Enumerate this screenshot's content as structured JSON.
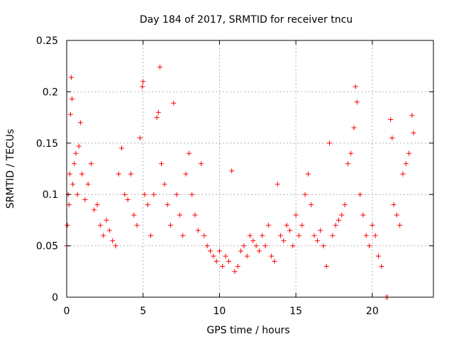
{
  "chart_data": {
    "type": "scatter",
    "title": "Day 184 of 2017, SRMTID for receiver tncu",
    "xlabel": "GPS time / hours",
    "ylabel": "SRMTID / TECUs",
    "xlim": [
      0,
      24
    ],
    "ylim": [
      0,
      0.25
    ],
    "x_ticks": [
      0,
      5,
      10,
      15,
      20
    ],
    "x_tick_labels": [
      "0",
      "5",
      "10",
      "15",
      "20"
    ],
    "y_ticks": [
      0,
      0.05,
      0.1,
      0.15,
      0.2,
      0.25
    ],
    "y_tick_labels": [
      "0",
      "0.05",
      "0.1",
      "0.15",
      "0.2",
      "0.25"
    ],
    "grid": true,
    "marker": "plus",
    "color": "#ff0000",
    "series": [
      {
        "name": "SRMTID",
        "points": [
          [
            0.0,
            0.05
          ],
          [
            0.05,
            0.07
          ],
          [
            0.1,
            0.1
          ],
          [
            0.15,
            0.09
          ],
          [
            0.2,
            0.12
          ],
          [
            0.25,
            0.178
          ],
          [
            0.3,
            0.214
          ],
          [
            0.35,
            0.193
          ],
          [
            0.4,
            0.11
          ],
          [
            0.5,
            0.13
          ],
          [
            0.6,
            0.14
          ],
          [
            0.7,
            0.1
          ],
          [
            0.8,
            0.147
          ],
          [
            0.9,
            0.17
          ],
          [
            1.0,
            0.12
          ],
          [
            1.2,
            0.095
          ],
          [
            1.4,
            0.11
          ],
          [
            1.6,
            0.13
          ],
          [
            1.8,
            0.085
          ],
          [
            2.0,
            0.09
          ],
          [
            2.2,
            0.07
          ],
          [
            2.4,
            0.06
          ],
          [
            2.6,
            0.075
          ],
          [
            2.8,
            0.065
          ],
          [
            3.0,
            0.055
          ],
          [
            3.2,
            0.05
          ],
          [
            3.4,
            0.12
          ],
          [
            3.6,
            0.145
          ],
          [
            3.8,
            0.1
          ],
          [
            4.0,
            0.095
          ],
          [
            4.2,
            0.12
          ],
          [
            4.4,
            0.08
          ],
          [
            4.6,
            0.07
          ],
          [
            4.8,
            0.155
          ],
          [
            4.95,
            0.205
          ],
          [
            5.0,
            0.21
          ],
          [
            5.1,
            0.1
          ],
          [
            5.3,
            0.09
          ],
          [
            5.5,
            0.06
          ],
          [
            5.7,
            0.1
          ],
          [
            5.9,
            0.175
          ],
          [
            6.0,
            0.18
          ],
          [
            6.1,
            0.224
          ],
          [
            6.2,
            0.13
          ],
          [
            6.4,
            0.11
          ],
          [
            6.6,
            0.09
          ],
          [
            6.8,
            0.07
          ],
          [
            7.0,
            0.189
          ],
          [
            7.2,
            0.1
          ],
          [
            7.4,
            0.08
          ],
          [
            7.6,
            0.06
          ],
          [
            7.8,
            0.12
          ],
          [
            8.0,
            0.14
          ],
          [
            8.2,
            0.1
          ],
          [
            8.4,
            0.08
          ],
          [
            8.6,
            0.065
          ],
          [
            8.8,
            0.13
          ],
          [
            9.0,
            0.06
          ],
          [
            9.2,
            0.05
          ],
          [
            9.4,
            0.045
          ],
          [
            9.6,
            0.04
          ],
          [
            9.8,
            0.035
          ],
          [
            10.0,
            0.045
          ],
          [
            10.2,
            0.03
          ],
          [
            10.4,
            0.04
          ],
          [
            10.6,
            0.035
          ],
          [
            10.8,
            0.123
          ],
          [
            11.0,
            0.025
          ],
          [
            11.2,
            0.03
          ],
          [
            11.4,
            0.045
          ],
          [
            11.6,
            0.05
          ],
          [
            11.8,
            0.04
          ],
          [
            12.0,
            0.06
          ],
          [
            12.2,
            0.055
          ],
          [
            12.4,
            0.05
          ],
          [
            12.6,
            0.045
          ],
          [
            12.8,
            0.06
          ],
          [
            13.0,
            0.05
          ],
          [
            13.2,
            0.07
          ],
          [
            13.4,
            0.04
          ],
          [
            13.6,
            0.035
          ],
          [
            13.8,
            0.11
          ],
          [
            14.0,
            0.06
          ],
          [
            14.2,
            0.055
          ],
          [
            14.4,
            0.07
          ],
          [
            14.6,
            0.065
          ],
          [
            14.8,
            0.05
          ],
          [
            15.0,
            0.08
          ],
          [
            15.2,
            0.06
          ],
          [
            15.4,
            0.07
          ],
          [
            15.6,
            0.1
          ],
          [
            15.8,
            0.12
          ],
          [
            16.0,
            0.09
          ],
          [
            16.2,
            0.06
          ],
          [
            16.4,
            0.055
          ],
          [
            16.6,
            0.065
          ],
          [
            16.8,
            0.05
          ],
          [
            17.0,
            0.03
          ],
          [
            17.2,
            0.15
          ],
          [
            17.4,
            0.06
          ],
          [
            17.6,
            0.07
          ],
          [
            17.8,
            0.075
          ],
          [
            18.0,
            0.08
          ],
          [
            18.2,
            0.09
          ],
          [
            18.4,
            0.13
          ],
          [
            18.6,
            0.14
          ],
          [
            18.8,
            0.165
          ],
          [
            18.9,
            0.205
          ],
          [
            19.0,
            0.19
          ],
          [
            19.2,
            0.1
          ],
          [
            19.4,
            0.08
          ],
          [
            19.6,
            0.06
          ],
          [
            19.8,
            0.05
          ],
          [
            20.0,
            0.07
          ],
          [
            20.2,
            0.06
          ],
          [
            20.4,
            0.04
          ],
          [
            20.6,
            0.03
          ],
          [
            20.9,
            0.0
          ],
          [
            21.0,
            0.0
          ],
          [
            21.2,
            0.173
          ],
          [
            21.3,
            0.155
          ],
          [
            21.4,
            0.09
          ],
          [
            21.6,
            0.08
          ],
          [
            21.8,
            0.07
          ],
          [
            22.0,
            0.12
          ],
          [
            22.2,
            0.13
          ],
          [
            22.4,
            0.14
          ],
          [
            22.6,
            0.177
          ],
          [
            22.7,
            0.16
          ]
        ]
      }
    ]
  }
}
